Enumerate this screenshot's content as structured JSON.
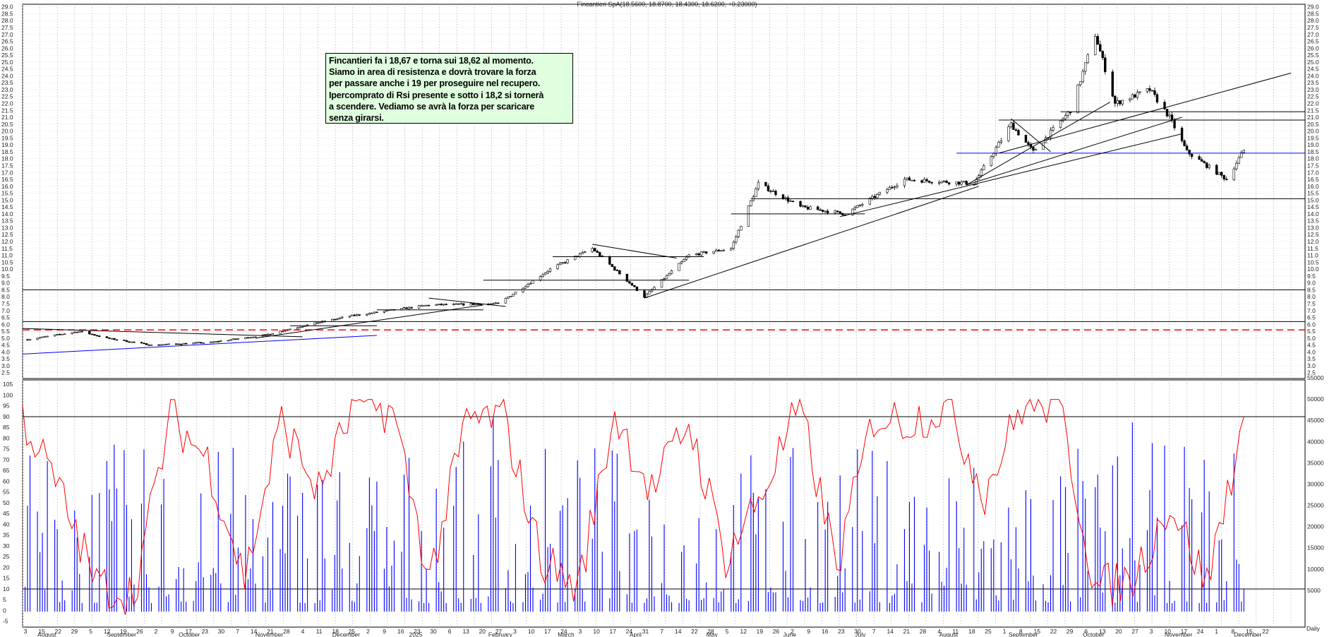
{
  "chart_data": [
    {
      "type": "candlestick",
      "title": "Fincantieri SpA(18.5600, 18.8700, 18.4300, 18.6200, +0.23000)",
      "ylim": [
        2.0,
        29.5
      ],
      "y_ticks": [
        "2.5",
        "3.0",
        "3.5",
        "4.0",
        "4.5",
        "5.0",
        "5.5",
        "6.0",
        "6.5",
        "7.0",
        "7.5",
        "8.0",
        "8.5",
        "9.0",
        "9.5",
        "10.0",
        "10.5",
        "11.0",
        "11.5",
        "12.0",
        "12.5",
        "13.0",
        "13.5",
        "14.0",
        "14.5",
        "15.0",
        "15.5",
        "16.0",
        "16.5",
        "17.0",
        "17.5",
        "18.0",
        "18.5",
        "19.0",
        "19.5",
        "20.0",
        "20.5",
        "21.0",
        "21.5",
        "22.0",
        "22.5",
        "23.0",
        "23.5",
        "24.0",
        "24.5",
        "25.0",
        "25.5",
        "26.0",
        "26.5",
        "27.0",
        "27.5",
        "28.0",
        "28.5",
        "29.0"
      ],
      "grid": true,
      "price_path_anchors": [
        {
          "date": "2024-08-01",
          "close": 4.9
        },
        {
          "date": "2024-08-22",
          "close": 5.5
        },
        {
          "date": "2024-09-02",
          "close": 5.0
        },
        {
          "date": "2024-09-20",
          "close": 4.5
        },
        {
          "date": "2024-10-14",
          "close": 4.7
        },
        {
          "date": "2024-11-04",
          "close": 5.2
        },
        {
          "date": "2024-11-18",
          "close": 5.8
        },
        {
          "date": "2024-12-09",
          "close": 6.6
        },
        {
          "date": "2025-01-10",
          "close": 7.4
        },
        {
          "date": "2025-02-07",
          "close": 7.5
        },
        {
          "date": "2025-02-28",
          "close": 10.0
        },
        {
          "date": "2025-03-17",
          "close": 11.5
        },
        {
          "date": "2025-04-07",
          "close": 8.0
        },
        {
          "date": "2025-04-25",
          "close": 11.0
        },
        {
          "date": "2025-05-12",
          "close": 11.5
        },
        {
          "date": "2025-05-23",
          "close": 16.2
        },
        {
          "date": "2025-06-09",
          "close": 14.5
        },
        {
          "date": "2025-06-27",
          "close": 14.0
        },
        {
          "date": "2025-07-21",
          "close": 16.5
        },
        {
          "date": "2025-08-18",
          "close": 16.2
        },
        {
          "date": "2025-09-02",
          "close": 20.5
        },
        {
          "date": "2025-09-11",
          "close": 18.5
        },
        {
          "date": "2025-09-26",
          "close": 21.5
        },
        {
          "date": "2025-10-06",
          "close": 27.0
        },
        {
          "date": "2025-10-14",
          "close": 22.0
        },
        {
          "date": "2025-10-28",
          "close": 23.0
        },
        {
          "date": "2025-11-05",
          "close": 21.0
        },
        {
          "date": "2025-11-12",
          "close": 18.5
        },
        {
          "date": "2025-11-28",
          "close": 16.5
        },
        {
          "date": "2025-12-05",
          "close": 18.62
        }
      ],
      "horizontal_levels": [
        8.5,
        6.2,
        15.1,
        18.4,
        20.8,
        21.4
      ],
      "dashed_level": 5.6,
      "annotation": "Fincantieri fa i 18,67 e torna sui 18,62 al momento.\nSiamo in area di resistenza e dovrà trovare la forza\nper passare anche i 19 per proseguire nel recupero.\nIpercomprato di Rsi presente e sotto i 18,2 si tornerà\na scendere. Vediamo se avrà la forza per scaricare\nsenza girarsi."
    },
    {
      "type": "line+bar",
      "series": [
        {
          "name": "",
          "kind": "RSI line",
          "color": "#ff0000",
          "range": [
            -5,
            105
          ],
          "levels": [
            90,
            10
          ],
          "anchors": [
            90,
            55,
            12,
            8,
            90,
            70,
            15,
            88,
            55,
            97,
            92,
            15,
            88,
            90,
            25,
            10,
            92,
            55,
            88,
            25,
            55,
            95,
            20,
            90,
            88,
            95,
            55,
            95,
            97,
            10,
            15,
            50,
            12,
            90
          ]
        },
        {
          "name": "",
          "kind": "volume bars",
          "color": "#0000ff",
          "range": [
            0,
            58000
          ],
          "note": "daily volume bars"
        }
      ],
      "left_ticks": [
        "-5",
        "0",
        "5",
        "10",
        "15",
        "20",
        "25",
        "30",
        "35",
        "40",
        "45",
        "50",
        "55",
        "60",
        "65",
        "70",
        "75",
        "80",
        "85",
        "90",
        "95",
        "100",
        "105"
      ],
      "right_ticks": [
        "5000",
        "10000",
        "15000",
        "20000",
        "25000",
        "30000",
        "35000",
        "40000",
        "45000",
        "50000",
        "55000"
      ]
    }
  ],
  "x_axis": {
    "day_ticks": [
      "3",
      "15",
      "22",
      "29",
      "5",
      "12",
      "19",
      "26",
      "2",
      "9",
      "17",
      "23",
      "30",
      "7",
      "14",
      "21",
      "28",
      "4",
      "11",
      "18",
      "25",
      "2",
      "9",
      "16",
      "23",
      "30",
      "6",
      "13",
      "20",
      "27",
      "3",
      "10",
      "17",
      "24",
      "3",
      "10",
      "17",
      "24",
      "31",
      "7",
      "14",
      "22",
      "28",
      "5",
      "12",
      "19",
      "26",
      "2",
      "9",
      "16",
      "23",
      "30",
      "7",
      "14",
      "21",
      "28",
      "4",
      "11",
      "18",
      "25",
      "1",
      "8",
      "15",
      "22",
      "29",
      "6",
      "13",
      "20",
      "27",
      "3",
      "10",
      "17",
      "24",
      "1",
      "8",
      "15",
      "22"
    ],
    "month_labels": [
      "August",
      "September",
      "October",
      "November",
      "December",
      "2025",
      "February",
      "March",
      "April",
      "May",
      "June",
      "July",
      "August",
      "September",
      "October",
      "November",
      "December"
    ],
    "right_corner_label": "Daily"
  },
  "colors": {
    "candle_up": "#000000",
    "candle_down": "#000000",
    "rsi": "#ff0000",
    "volume": "#0000ff",
    "support_line": "#0000ff",
    "dashed_level": "#ff0000",
    "annotation_bg": "#dfffdf"
  }
}
